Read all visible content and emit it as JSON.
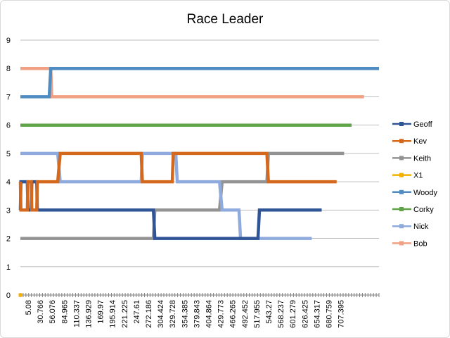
{
  "chart_data": {
    "type": "line",
    "title": "Race Leader",
    "xlabel": "",
    "ylabel": "",
    "ylim": [
      0,
      9
    ],
    "yticks": [
      0,
      1,
      2,
      3,
      4,
      5,
      6,
      7,
      8,
      9
    ],
    "xlim": [
      5.08,
      725
    ],
    "xtick_labels": [
      "5.08",
      "30.766",
      "56.076",
      "84.965",
      "110.337",
      "136.929",
      "169.97",
      "195.914",
      "221.225",
      "247.61",
      "272.186",
      "304.424",
      "329.728",
      "354.385",
      "379.843",
      "404.864",
      "429.773",
      "466.265",
      "492.452",
      "517.955",
      "543.27",
      "568.237",
      "601.279",
      "626.425",
      "654.317",
      "680.759",
      "707.395"
    ],
    "grid": true,
    "legend_position": "right",
    "series": [
      {
        "name": "Geoff",
        "color": "#2F5597",
        "x": [
          5.08,
          6,
          10,
          19,
          20,
          27,
          28,
          33,
          38,
          39,
          272.186,
          275,
          482,
          485,
          610
        ],
        "y": [
          3,
          4,
          4,
          4,
          3,
          3,
          4,
          4,
          4,
          3,
          3,
          2,
          2,
          3,
          3
        ]
      },
      {
        "name": "Kev",
        "color": "#D4691E",
        "x": [
          5.08,
          6,
          19,
          20,
          27,
          28,
          38,
          39,
          48,
          80,
          84.965,
          247.61,
          250,
          310,
          312,
          500,
          503,
          640
        ],
        "y": [
          4,
          3,
          3,
          4,
          4,
          3,
          3,
          4,
          4,
          4,
          5,
          5,
          4,
          4,
          5,
          5,
          4,
          4
        ]
      },
      {
        "name": "Keith",
        "color": "#939393",
        "x": [
          5.08,
          272.186,
          275,
          404.864,
          410,
          500,
          503,
          655
        ],
        "y": [
          2,
          2,
          3,
          3,
          4,
          4,
          5,
          5
        ]
      },
      {
        "name": "X1",
        "color": "#F4B000",
        "x": [
          5.08
        ],
        "y": [
          0
        ]
      },
      {
        "name": "Woody",
        "color": "#4E8CC2",
        "x": [
          5.08,
          63,
          66,
          725
        ],
        "y": [
          7,
          7,
          8,
          8
        ]
      },
      {
        "name": "Corky",
        "color": "#5FA347",
        "x": [
          5.08,
          670
        ],
        "y": [
          6,
          6
        ]
      },
      {
        "name": "Nick",
        "color": "#8FAADC",
        "x": [
          5.08,
          80,
          84.965,
          247.61,
          250,
          317,
          320,
          404.864,
          410,
          444,
          447,
          482,
          485,
          590
        ],
        "y": [
          5,
          5,
          4,
          4,
          5,
          5,
          4,
          4,
          3,
          3,
          2,
          2,
          2,
          2
        ]
      },
      {
        "name": "Bob",
        "color": "#F0A083",
        "x": [
          5.08,
          66,
          68,
          695
        ],
        "y": [
          8,
          8,
          7,
          7
        ]
      }
    ]
  }
}
